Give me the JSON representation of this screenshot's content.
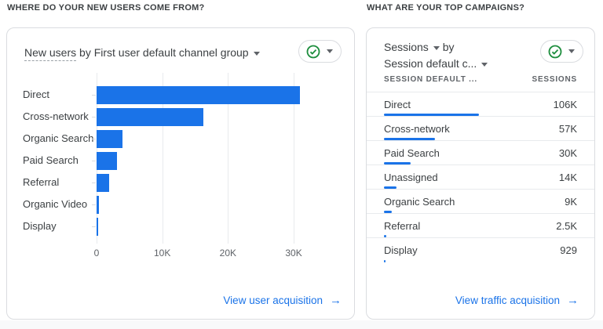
{
  "colors": {
    "accent_blue": "#1a73e8",
    "bar_blue": "#1a73e8",
    "check_green": "#1e8e3e",
    "card_border": "#dadce0",
    "separator": "#e8eaed",
    "text_dark": "#3c4043",
    "text_gray": "#5f6368",
    "page_strip": "#f8f9fa"
  },
  "left_section": {
    "header": "WHERE DO YOUR NEW USERS COME FROM?",
    "card": {
      "title_metric": "New users",
      "title_rest": "by First user default channel group",
      "footer_link": "View user acquisition",
      "footer_arrow": "→"
    }
  },
  "right_section": {
    "header": "WHAT ARE YOUR TOP CAMPAIGNS?",
    "card": {
      "title_line1_metric": "Sessions",
      "title_line1_rest": "by",
      "title_line2": "Session default c...",
      "col_header_dimension": "SESSION DEFAULT ...",
      "col_header_metric": "SESSIONS",
      "footer_link": "View traffic acquisition",
      "footer_arrow": "→"
    }
  },
  "chart_data": [
    {
      "type": "bar",
      "orientation": "horizontal",
      "title": "New users by First user default channel group",
      "categories": [
        "Direct",
        "Cross-network",
        "Organic Search",
        "Paid Search",
        "Referral",
        "Organic Video",
        "Display"
      ],
      "values": [
        31000,
        16300,
        4000,
        3100,
        1900,
        350,
        250
      ],
      "xlabel": "",
      "ylabel": "",
      "xlim": [
        0,
        38000
      ],
      "xticks": [
        "0",
        "10K",
        "20K",
        "30K"
      ],
      "xtick_values": [
        0,
        10000,
        20000,
        30000
      ],
      "bar_color": "#1a73e8",
      "grid": true,
      "legend": false
    },
    {
      "type": "table",
      "title": "Sessions by Session default channel group",
      "columns": [
        "SESSION DEFAULT ...",
        "SESSIONS"
      ],
      "rows": [
        {
          "label": "Direct",
          "value": "106K",
          "numeric": 106000
        },
        {
          "label": "Cross-network",
          "value": "57K",
          "numeric": 57000
        },
        {
          "label": "Paid Search",
          "value": "30K",
          "numeric": 30000
        },
        {
          "label": "Unassigned",
          "value": "14K",
          "numeric": 14000
        },
        {
          "label": "Organic Search",
          "value": "9K",
          "numeric": 9000
        },
        {
          "label": "Referral",
          "value": "2.5K",
          "numeric": 2500
        },
        {
          "label": "Display",
          "value": "929",
          "numeric": 929
        }
      ]
    }
  ]
}
